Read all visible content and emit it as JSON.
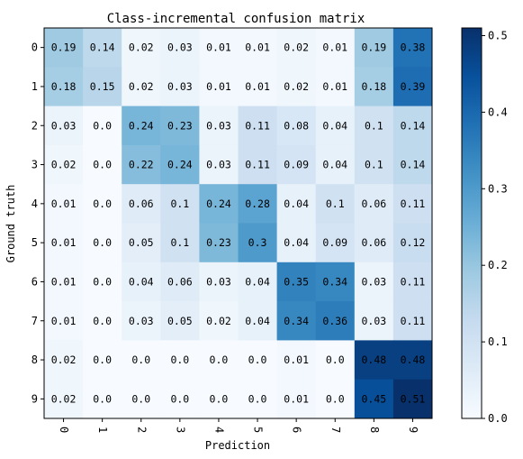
{
  "chart_data": {
    "type": "heatmap",
    "title": "Class-incremental confusion matrix",
    "xlabel": "Prediction",
    "ylabel": "Ground truth",
    "x_ticks": [
      "0",
      "1",
      "2",
      "3",
      "4",
      "5",
      "6",
      "7",
      "8",
      "9"
    ],
    "y_ticks": [
      "0",
      "1",
      "2",
      "3",
      "4",
      "5",
      "6",
      "7",
      "8",
      "9"
    ],
    "values": [
      [
        "0.19",
        "0.14",
        "0.02",
        "0.03",
        "0.01",
        "0.01",
        "0.02",
        "0.01",
        "0.19",
        "0.38"
      ],
      [
        "0.18",
        "0.15",
        "0.02",
        "0.03",
        "0.01",
        "0.01",
        "0.02",
        "0.01",
        "0.18",
        "0.39"
      ],
      [
        "0.03",
        "0.0",
        "0.24",
        "0.23",
        "0.03",
        "0.11",
        "0.08",
        "0.04",
        "0.1",
        "0.14"
      ],
      [
        "0.02",
        "0.0",
        "0.22",
        "0.24",
        "0.03",
        "0.11",
        "0.09",
        "0.04",
        "0.1",
        "0.14"
      ],
      [
        "0.01",
        "0.0",
        "0.06",
        "0.1",
        "0.24",
        "0.28",
        "0.04",
        "0.1",
        "0.06",
        "0.11"
      ],
      [
        "0.01",
        "0.0",
        "0.05",
        "0.1",
        "0.23",
        "0.3",
        "0.04",
        "0.09",
        "0.06",
        "0.12"
      ],
      [
        "0.01",
        "0.0",
        "0.04",
        "0.06",
        "0.03",
        "0.04",
        "0.35",
        "0.34",
        "0.03",
        "0.11"
      ],
      [
        "0.01",
        "0.0",
        "0.03",
        "0.05",
        "0.02",
        "0.04",
        "0.34",
        "0.36",
        "0.03",
        "0.11"
      ],
      [
        "0.02",
        "0.0",
        "0.0",
        "0.0",
        "0.0",
        "0.0",
        "0.01",
        "0.0",
        "0.48",
        "0.48"
      ],
      [
        "0.02",
        "0.0",
        "0.0",
        "0.0",
        "0.0",
        "0.0",
        "0.01",
        "0.0",
        "0.45",
        "0.51"
      ]
    ],
    "colorbar": {
      "min": 0.0,
      "max": 0.51,
      "ticks": [
        0.0,
        0.1,
        0.2,
        0.3,
        0.4,
        0.5
      ],
      "tick_labels": [
        "0.0",
        "0.1",
        "0.2",
        "0.3",
        "0.4",
        "0.5"
      ],
      "colormap": "Blues"
    },
    "grid": false
  }
}
